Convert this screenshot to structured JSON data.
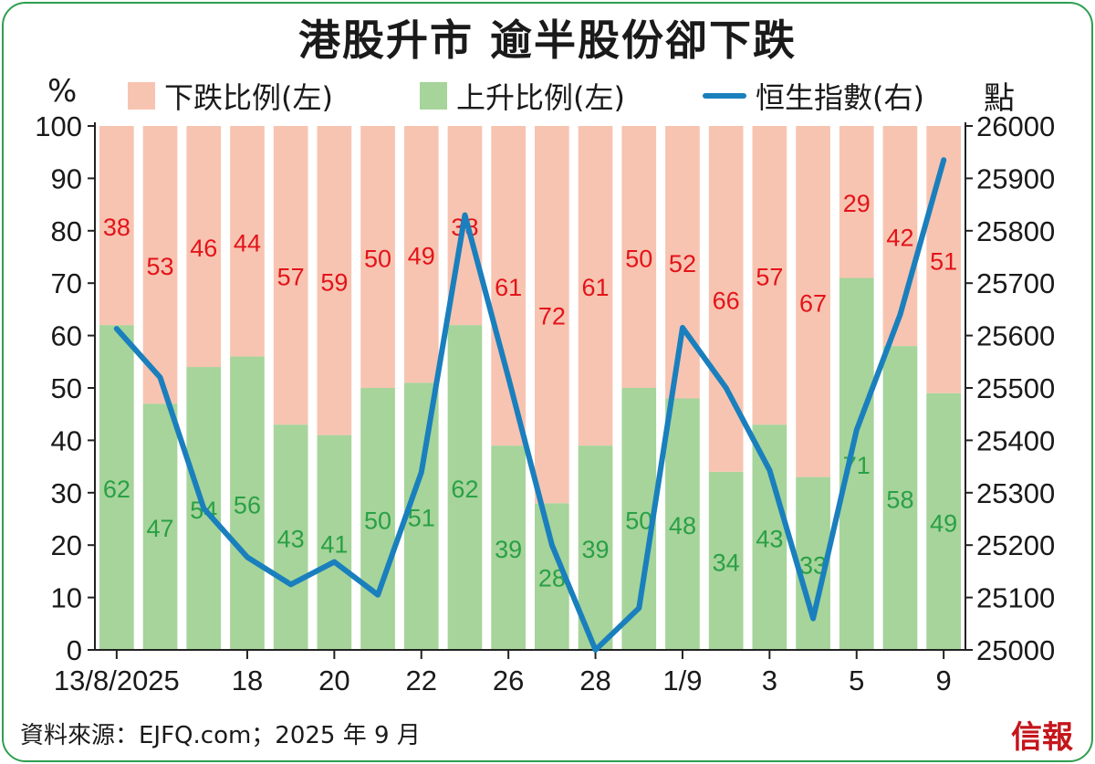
{
  "title": "港股升市 逾半股份卻下跌",
  "left_unit": "%",
  "right_unit": "點",
  "source": "資料來源：EJFQ.com；2025 年 9 月",
  "logo": "信報",
  "colors": {
    "decline": "#f7c4b1",
    "advance": "#a6d49a",
    "index": "#1a7fbd",
    "decline_label": "#e3141a",
    "advance_label": "#2aa046",
    "frame": "#2f9e4f"
  },
  "chart_data": {
    "type": "bar",
    "stacked": true,
    "title": "港股升市 逾半股份卻下跌",
    "x_tick_labels": [
      "13/8/2025",
      "",
      "",
      "18",
      "",
      "20",
      "",
      "22",
      "",
      "26",
      "",
      "28",
      "",
      "1/9",
      "",
      "3",
      "",
      "5",
      "",
      "9"
    ],
    "x_tick_positions": [
      0,
      3,
      5,
      7,
      9,
      11,
      13,
      15,
      17,
      19
    ],
    "left_axis": {
      "unit": "%",
      "ylim": [
        0,
        100
      ],
      "ticks": [
        0,
        10,
        20,
        30,
        40,
        50,
        60,
        70,
        80,
        90,
        100
      ]
    },
    "right_axis": {
      "unit": "點",
      "ylim": [
        25000,
        26000
      ],
      "ticks": [
        25000,
        25100,
        25200,
        25300,
        25400,
        25500,
        25600,
        25700,
        25800,
        25900,
        26000
      ]
    },
    "legend_position": "top",
    "series": [
      {
        "name": "下跌比例(左)",
        "kind": "bar",
        "axis": "left",
        "values": [
          38,
          53,
          46,
          44,
          57,
          59,
          50,
          49,
          38,
          61,
          72,
          61,
          50,
          52,
          66,
          57,
          67,
          29,
          42,
          51
        ]
      },
      {
        "name": "上升比例(左)",
        "kind": "bar",
        "axis": "left",
        "values": [
          62,
          47,
          54,
          56,
          43,
          41,
          50,
          51,
          62,
          39,
          28,
          39,
          50,
          48,
          34,
          43,
          33,
          71,
          58,
          49
        ]
      },
      {
        "name": "恒生指數(右)",
        "kind": "line",
        "axis": "right",
        "values": [
          25613,
          25520,
          25270,
          25177,
          25125,
          25168,
          25105,
          25339,
          25830,
          25520,
          25200,
          25000,
          25080,
          25615,
          25500,
          25343,
          25060,
          25420,
          25640,
          25935
        ]
      }
    ]
  }
}
